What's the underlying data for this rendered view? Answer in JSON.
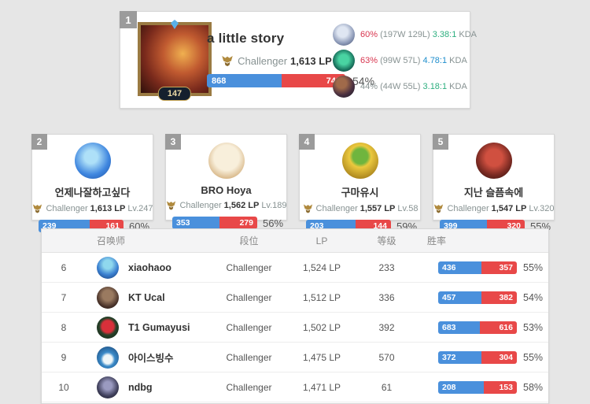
{
  "colors": {
    "win_blue": "#4a90dc",
    "loss_red": "#e84848",
    "pct_red": "#d8354f",
    "pct_gray": "#879292",
    "kda_green": "#2daf7f",
    "kda_blue": "#1f8ecd"
  },
  "top_player": {
    "rank": "1",
    "level": "147",
    "name": "a little story",
    "tier": "Challenger",
    "lp": "1,613 LP",
    "wins": "868",
    "losses": "748",
    "winrate": "54%",
    "champions": [
      {
        "pct": "60%",
        "record": "(197W 129L)",
        "kda": "3.38:1",
        "kda_label": "KDA",
        "pct_color": "#d8354f",
        "kda_color": "#2daf7f"
      },
      {
        "pct": "63%",
        "record": "(99W 57L)",
        "kda": "4.78:1",
        "kda_label": "KDA",
        "pct_color": "#d8354f",
        "kda_color": "#1f8ecd"
      },
      {
        "pct": "44%",
        "record": "(44W 55L)",
        "kda": "3.18:1",
        "kda_label": "KDA",
        "pct_color": "#879292",
        "kda_color": "#2daf7f"
      }
    ]
  },
  "cards": [
    {
      "rank": "2",
      "name": "언제나잘하고싶다",
      "tier": "Challenger",
      "lp": "1,613 LP",
      "level": "Lv.247",
      "wins": "239",
      "losses": "161",
      "winrate": "60%"
    },
    {
      "rank": "3",
      "name": "BRO Hoya",
      "tier": "Challenger",
      "lp": "1,562 LP",
      "level": "Lv.189",
      "wins": "353",
      "losses": "279",
      "winrate": "56%"
    },
    {
      "rank": "4",
      "name": "구마유시",
      "tier": "Challenger",
      "lp": "1,557 LP",
      "level": "Lv.58",
      "wins": "203",
      "losses": "144",
      "winrate": "59%"
    },
    {
      "rank": "5",
      "name": "지난 슬픔속에",
      "tier": "Challenger",
      "lp": "1,547 LP",
      "level": "Lv.320",
      "wins": "399",
      "losses": "320",
      "winrate": "55%"
    }
  ],
  "table": {
    "headers": {
      "summoner": "召唤师",
      "tier": "段位",
      "lp": "LP",
      "level": "等级",
      "winrate": "胜率"
    },
    "rows": [
      {
        "rank": "6",
        "name": "xiaohaoo",
        "tier": "Challenger",
        "lp": "1,524 LP",
        "level": "233",
        "wins": "436",
        "losses": "357",
        "winrate": "55%"
      },
      {
        "rank": "7",
        "name": "KT Ucal",
        "tier": "Challenger",
        "lp": "1,512 LP",
        "level": "336",
        "wins": "457",
        "losses": "382",
        "winrate": "54%"
      },
      {
        "rank": "8",
        "name": "T1 Gumayusi",
        "tier": "Challenger",
        "lp": "1,502 LP",
        "level": "392",
        "wins": "683",
        "losses": "616",
        "winrate": "53%"
      },
      {
        "rank": "9",
        "name": "아이스빙수",
        "tier": "Challenger",
        "lp": "1,475 LP",
        "level": "570",
        "wins": "372",
        "losses": "304",
        "winrate": "55%"
      },
      {
        "rank": "10",
        "name": "ndbg",
        "tier": "Challenger",
        "lp": "1,471 LP",
        "level": "61",
        "wins": "208",
        "losses": "153",
        "winrate": "58%"
      }
    ]
  }
}
